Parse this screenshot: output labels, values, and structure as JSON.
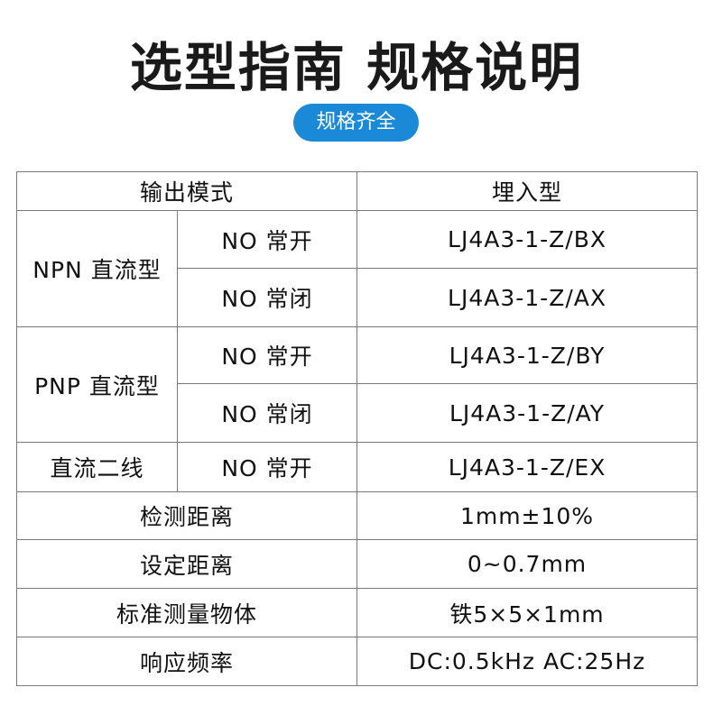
{
  "title": "选型指南 规格说明",
  "badge": "规格齐全",
  "table": {
    "header": {
      "col1": "输出模式",
      "col2": "埋入型"
    },
    "npn": {
      "label": "NPN 直流型",
      "rows": [
        {
          "mode": "NO 常开",
          "model": "LJ4A3-1-Z/BX"
        },
        {
          "mode": "NO 常闭",
          "model": "LJ4A3-1-Z/AX"
        }
      ]
    },
    "pnp": {
      "label": "PNP 直流型",
      "rows": [
        {
          "mode": "NO 常开",
          "model": "LJ4A3-1-Z/BY"
        },
        {
          "mode": "NO 常闭",
          "model": "LJ4A3-1-Z/AY"
        }
      ]
    },
    "two_wire": {
      "label": "直流二线",
      "mode": "NO 常开",
      "model": "LJ4A3-1-Z/EX"
    },
    "specs": [
      {
        "label": "检测距离",
        "value": "1mm±10%"
      },
      {
        "label": "设定距离",
        "value": "0~0.7mm"
      },
      {
        "label": "标准测量物体",
        "value": "铁5×5×1mm"
      },
      {
        "label": "响应频率",
        "value": "DC:0.5kHz AC:25Hz"
      }
    ]
  }
}
